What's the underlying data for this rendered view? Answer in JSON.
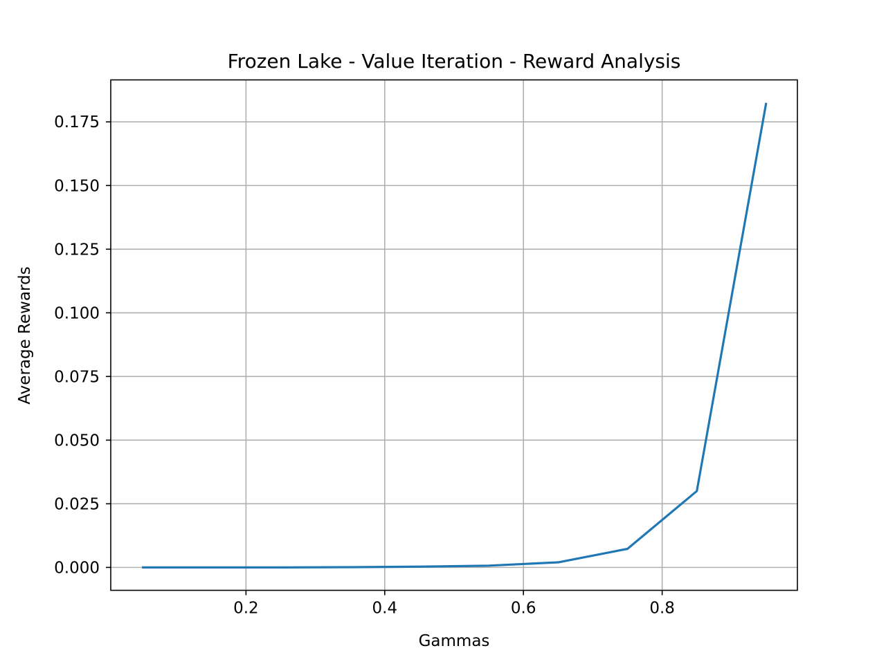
{
  "chart_data": {
    "type": "line",
    "title": "Frozen Lake - Value Iteration - Reward Analysis",
    "xlabel": "Gammas",
    "ylabel": "Average Rewards",
    "xlim": [
      0.005,
      0.995
    ],
    "ylim": [
      -0.009,
      0.1915
    ],
    "xticks": [
      0.2,
      0.4,
      0.6,
      0.8
    ],
    "xtick_labels": [
      "0.2",
      "0.4",
      "0.6",
      "0.8"
    ],
    "yticks": [
      0.0,
      0.025,
      0.05,
      0.075,
      0.1,
      0.125,
      0.15,
      0.175
    ],
    "ytick_labels": [
      "0.000",
      "0.025",
      "0.050",
      "0.075",
      "0.100",
      "0.125",
      "0.150",
      "0.175"
    ],
    "grid": true,
    "series": [
      {
        "color": "#1f77b4",
        "x": [
          0.05,
          0.15,
          0.25,
          0.35,
          0.45,
          0.55,
          0.65,
          0.75,
          0.85,
          0.95
        ],
        "y": [
          0.0,
          0.0,
          0.0,
          0.0001,
          0.0003,
          0.0007,
          0.002,
          0.0073,
          0.03,
          0.1825
        ]
      }
    ]
  }
}
